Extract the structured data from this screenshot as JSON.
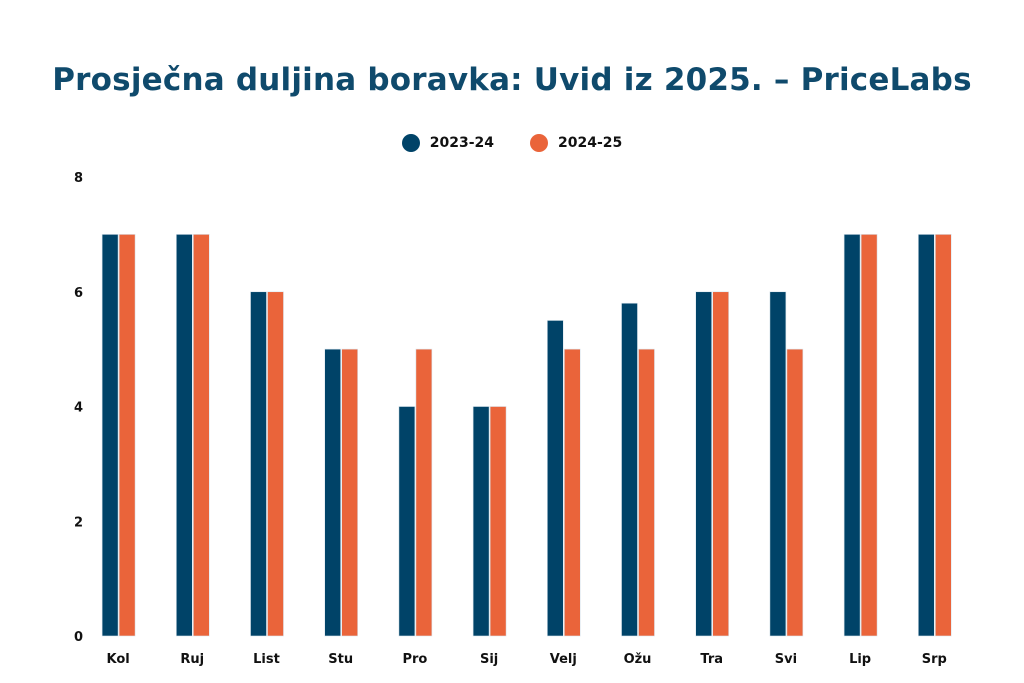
{
  "chart_data": {
    "type": "bar",
    "title": "Prosječna duljina boravka: Uvid iz 2025. – PriceLabs",
    "xlabel": "",
    "ylabel": "",
    "categories": [
      "Kol",
      "Ruj",
      "List",
      "Stu",
      "Pro",
      "Sij",
      "Velj",
      "Ožu",
      "Tra",
      "Svi",
      "Lip",
      "Srp"
    ],
    "series": [
      {
        "name": "2023-24",
        "color": "#004368",
        "values": [
          7,
          7,
          6,
          5,
          4,
          4,
          5.5,
          5.8,
          6,
          6,
          7,
          7
        ]
      },
      {
        "name": "2024-25",
        "color": "#ea643a",
        "values": [
          7,
          7,
          6,
          5,
          5,
          4,
          5,
          5,
          6,
          5,
          7,
          7
        ]
      }
    ],
    "ylim": [
      0,
      8
    ],
    "yticks": [
      "0",
      "2",
      "4",
      "6",
      "8"
    ],
    "grid": false,
    "legend_position": "top"
  }
}
